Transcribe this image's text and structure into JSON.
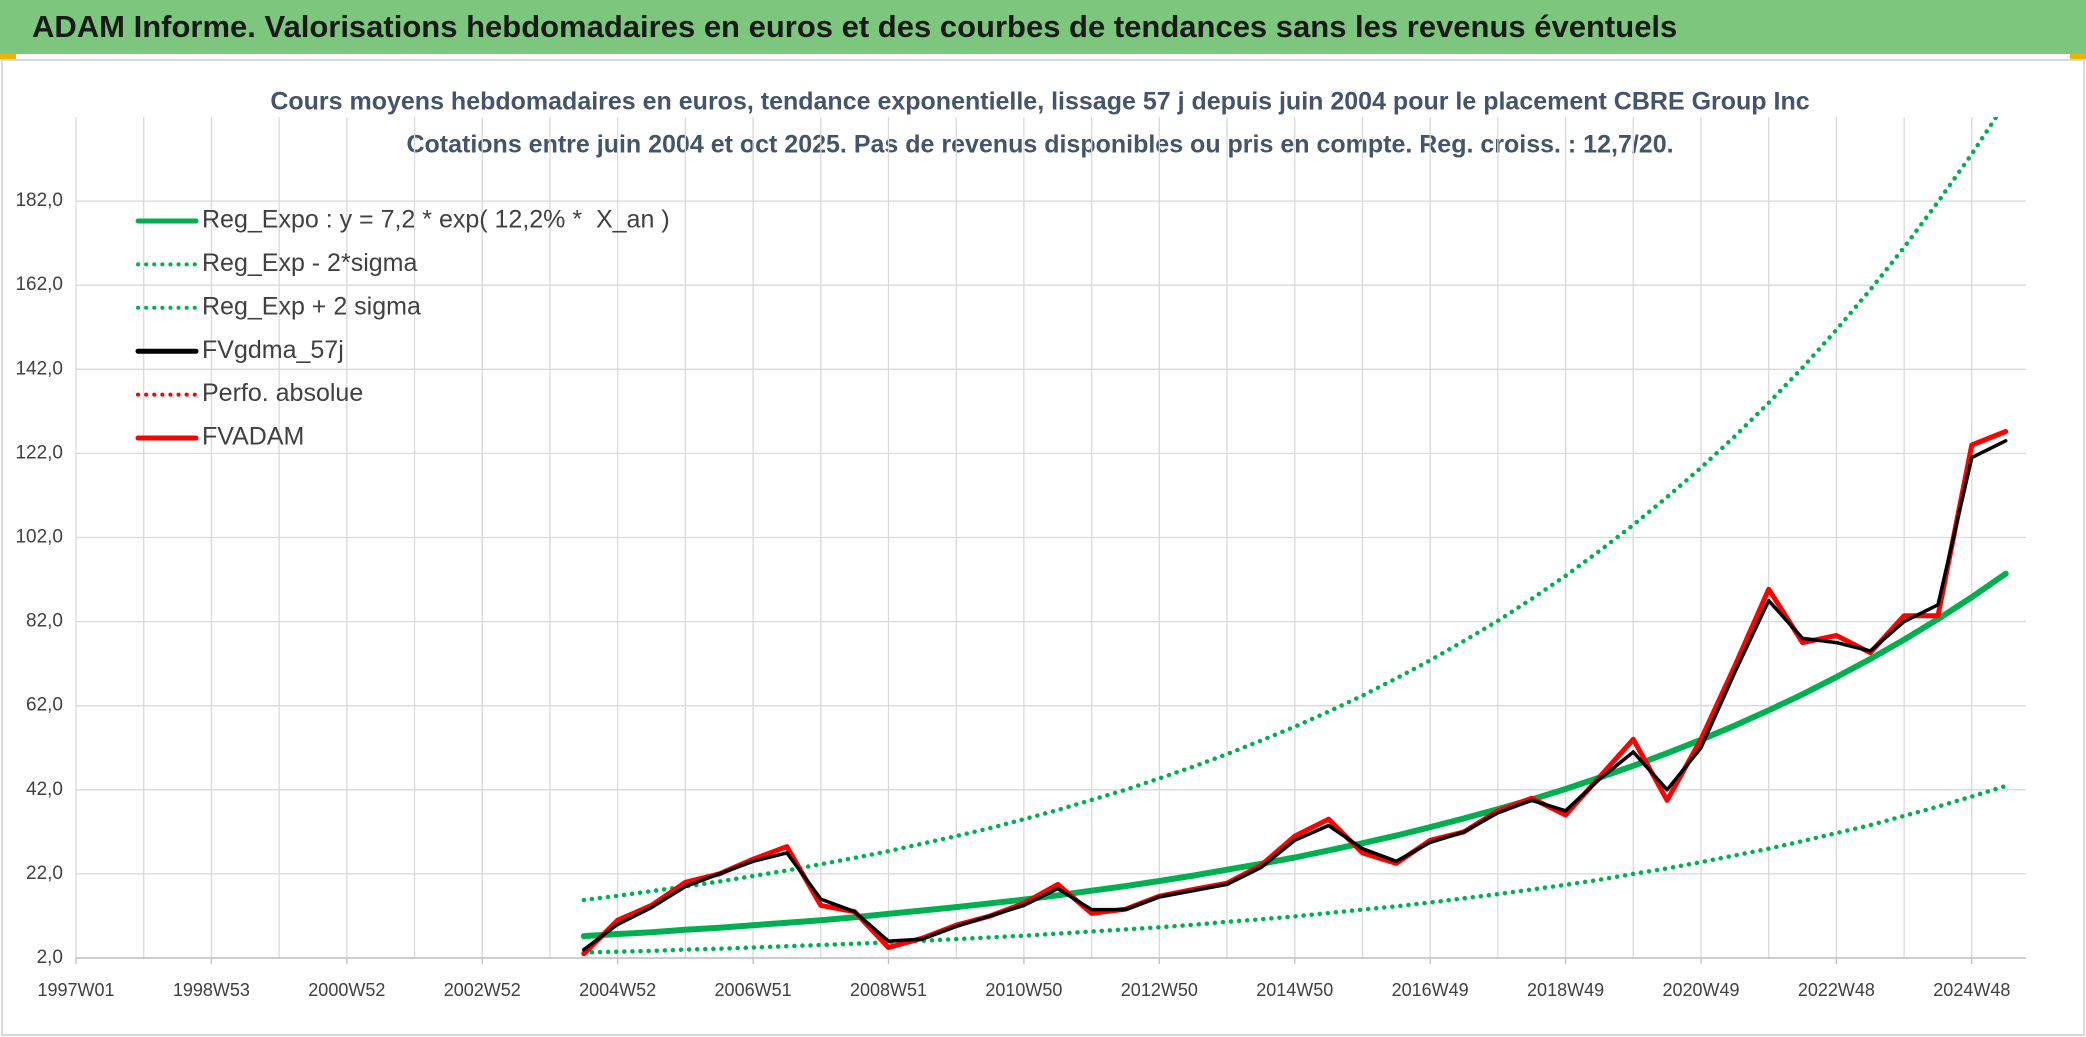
{
  "header": {
    "title": "ADAM Informe. Valorisations hebdomadaires en euros et des courbes de tendances sans les revenus éventuels"
  },
  "chart_data": {
    "type": "line",
    "title": "Cours moyens hebdomadaires en euros, tendance exponentielle, lissage 57 j depuis juin 2004 pour le placement CBRE Group Inc",
    "subtitle": "Cotations entre juin 2004 et oct 2025. Pas de revenus disponibles ou pris en compte. Reg. croiss. : 12,7/20.",
    "categories": [
      "1997W01",
      null,
      null,
      null,
      "1998W53",
      null,
      null,
      null,
      "2000W52",
      null,
      null,
      null,
      "2002W52",
      null,
      null,
      null,
      "2004W52",
      null,
      null,
      null,
      "2006W51",
      null,
      null,
      null,
      "2008W51",
      null,
      null,
      null,
      "2010W50",
      null,
      null,
      null,
      "2012W50",
      null,
      null,
      null,
      "2014W50",
      null,
      null,
      null,
      "2016W49",
      null,
      null,
      null,
      "2018W49",
      null,
      null,
      null,
      "2020W49",
      null,
      null,
      null,
      "2022W48",
      null,
      null,
      null,
      "2024W48",
      null
    ],
    "ylim": [
      2,
      202
    ],
    "yticks": [
      {
        "value": 2,
        "label": "2,0"
      },
      {
        "value": 22,
        "label": "22,0"
      },
      {
        "value": 42,
        "label": "42,0"
      },
      {
        "value": 62,
        "label": "62,0"
      },
      {
        "value": 82,
        "label": "82,0"
      },
      {
        "value": 102,
        "label": "102,0"
      },
      {
        "value": 122,
        "label": "122,0"
      },
      {
        "value": 142,
        "label": "142,0"
      },
      {
        "value": 162,
        "label": "162,0"
      },
      {
        "value": 182,
        "label": "182,0"
      }
    ],
    "grid": true,
    "legend": "top-left",
    "series": [
      {
        "name": "Reg_Expo : y = 7,2 * exp( 12,2% *  X_an )",
        "color": "#00b050",
        "line_style": "solid",
        "values": [
          null,
          null,
          null,
          null,
          null,
          null,
          null,
          null,
          null,
          null,
          null,
          null,
          null,
          null,
          null,
          7.2,
          7.7,
          8.1,
          8.7,
          9.2,
          9.8,
          10.4,
          11.0,
          11.7,
          12.5,
          13.3,
          14.1,
          15.0,
          15.9,
          16.9,
          18.0,
          19.1,
          20.3,
          21.6,
          23.0,
          24.4,
          25.9,
          27.6,
          29.3,
          31.1,
          33.1,
          35.2,
          37.4,
          39.7,
          42.2,
          44.9,
          47.7,
          50.7,
          53.9,
          57.3,
          60.9,
          64.7,
          68.8,
          73.1,
          77.7,
          82.6,
          87.8,
          93.4
        ]
      },
      {
        "name": "Reg_Exp - 2*sigma",
        "color": "#00b050",
        "line_style": "dotted",
        "values": [
          null,
          null,
          null,
          null,
          null,
          null,
          null,
          null,
          null,
          null,
          null,
          null,
          null,
          null,
          null,
          3.3,
          3.5,
          3.7,
          4.0,
          4.2,
          4.5,
          4.8,
          5.1,
          5.4,
          5.7,
          6.1,
          6.5,
          6.9,
          7.3,
          7.8,
          8.3,
          8.8,
          9.3,
          9.9,
          10.6,
          11.2,
          11.9,
          12.7,
          13.5,
          14.3,
          15.2,
          16.2,
          17.2,
          18.3,
          19.4,
          20.6,
          22.0,
          23.3,
          24.8,
          26.4,
          28.0,
          29.8,
          31.7,
          33.6,
          35.8,
          38.0,
          40.4,
          42.9
        ]
      },
      {
        "name": "Reg_Exp + 2 sigma",
        "color": "#00b050",
        "line_style": "dotted",
        "values": [
          null,
          null,
          null,
          null,
          null,
          null,
          null,
          null,
          null,
          null,
          null,
          null,
          null,
          null,
          null,
          15.8,
          16.8,
          17.9,
          19.0,
          20.2,
          21.5,
          22.8,
          24.3,
          25.8,
          27.4,
          29.2,
          31.0,
          32.9,
          35.0,
          37.2,
          39.6,
          42.0,
          44.7,
          47.5,
          50.5,
          53.7,
          57.0,
          60.6,
          64.4,
          68.5,
          72.8,
          77.4,
          82.2,
          87.4,
          92.9,
          98.8,
          105.0,
          111.6,
          118.6,
          126.1,
          134.0,
          142.4,
          151.4,
          160.9,
          171.0,
          181.8,
          193.2,
          205.4
        ]
      },
      {
        "name": "FVgdma_57j",
        "color": "#000000",
        "line_style": "solid",
        "values": [
          null,
          null,
          null,
          null,
          null,
          null,
          null,
          null,
          null,
          null,
          null,
          null,
          null,
          null,
          null,
          4,
          10,
          14,
          19,
          22,
          25,
          27,
          16,
          13,
          6,
          6.5,
          9.5,
          12,
          14.5,
          18.5,
          13.5,
          13.5,
          16.5,
          18,
          19.5,
          23.5,
          30,
          33.5,
          28,
          25,
          29.5,
          32,
          36.5,
          39.5,
          37,
          44.5,
          51,
          42,
          52,
          70,
          87,
          78,
          77,
          75,
          82,
          86,
          121,
          125
        ]
      },
      {
        "name": "Perfo. absolue",
        "color": "#ff0000",
        "line_style": "dotted",
        "values": [
          null,
          null,
          null,
          null,
          null,
          null,
          null,
          null,
          null,
          null,
          null,
          null,
          null,
          null,
          null,
          3,
          11,
          14.5,
          20,
          22,
          25.5,
          28.5,
          14.5,
          13,
          4.5,
          6.7,
          9.8,
          12,
          15,
          19.5,
          12.6,
          13.6,
          16.7,
          18.3,
          19.8,
          24,
          31,
          35,
          27,
          24.5,
          30,
          32,
          37,
          40,
          36,
          45,
          54,
          39.5,
          54,
          71.5,
          89.7,
          77,
          78.7,
          74.6,
          83.4,
          83.4,
          124,
          127.2
        ]
      },
      {
        "name": "FVADAM",
        "color": "#ff0000",
        "line_style": "solid",
        "values": [
          null,
          null,
          null,
          null,
          null,
          null,
          null,
          null,
          null,
          null,
          null,
          null,
          null,
          null,
          null,
          3,
          11,
          14.5,
          20,
          22,
          25.5,
          28.5,
          14.5,
          13,
          4.5,
          6.7,
          9.8,
          12,
          15,
          19.5,
          12.6,
          13.6,
          16.7,
          18.3,
          19.8,
          24,
          31,
          35,
          27,
          24.5,
          30,
          32,
          37,
          40,
          36,
          45,
          54,
          39.5,
          54,
          71.5,
          89.7,
          77,
          78.7,
          74.6,
          83.4,
          83.4,
          124,
          127.2
        ]
      }
    ]
  }
}
